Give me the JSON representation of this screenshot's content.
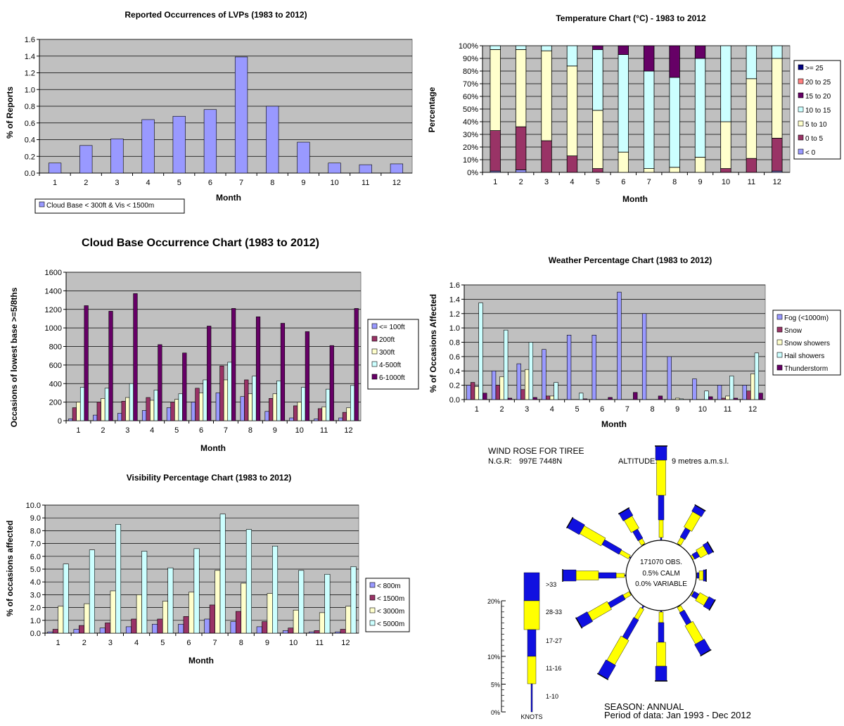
{
  "colors": {
    "plot_bg": "#c0c0c0",
    "grid": "#000000",
    "lavender": "#9999ff",
    "plum": "#993366",
    "cream": "#ffffcc",
    "lightcyan": "#ccffff",
    "darkpurple": "#660066",
    "salmon": "#ff8080",
    "navy": "#000080",
    "blue": "#1010e0",
    "yellow": "#ffff00"
  },
  "charts": {
    "lvp": {
      "type": "bar",
      "title": "Reported Occurrences of LVPs (1983 to 2012)",
      "xlabel": "Month",
      "ylabel": "% of Reports",
      "categories": [
        "1",
        "2",
        "3",
        "4",
        "5",
        "6",
        "7",
        "8",
        "9",
        "10",
        "11",
        "12"
      ],
      "ylim": [
        0,
        1.6
      ],
      "yticks": [
        "0.0",
        "0.2",
        "0.4",
        "0.6",
        "0.8",
        "1.0",
        "1.2",
        "1.4",
        "1.6"
      ],
      "series": [
        {
          "name": "Cloud Base < 300ft & Vis < 1500m",
          "color": "#9999ff",
          "values": [
            0.12,
            0.33,
            0.41,
            0.64,
            0.68,
            0.76,
            1.39,
            0.8,
            0.37,
            0.12,
            0.1,
            0.11
          ]
        }
      ]
    },
    "temperature": {
      "type": "bar",
      "stacked": true,
      "title": "Temperature Chart (°C) - 1983 to 2012",
      "xlabel": "Month",
      "ylabel": "Percentage",
      "categories": [
        "1",
        "2",
        "3",
        "4",
        "5",
        "6",
        "7",
        "8",
        "9",
        "10",
        "11",
        "12"
      ],
      "ylim": [
        0,
        100
      ],
      "yticks": [
        "0%",
        "10%",
        "20%",
        "30%",
        "40%",
        "50%",
        "60%",
        "70%",
        "80%",
        "90%",
        "100%"
      ],
      "series": [
        {
          "name": "< 0",
          "color": "#9999ff",
          "values": [
            1,
            2,
            0,
            0,
            0,
            0,
            0,
            0,
            0,
            0,
            0,
            1
          ]
        },
        {
          "name": "0 to 5",
          "color": "#993366",
          "values": [
            32,
            34,
            25,
            13,
            3,
            0,
            0,
            0,
            0,
            3,
            11,
            26
          ]
        },
        {
          "name": "5 to 10",
          "color": "#ffffcc",
          "values": [
            64,
            61,
            71,
            71,
            46,
            16,
            3,
            4,
            12,
            37,
            63,
            63
          ]
        },
        {
          "name": "10 to 15",
          "color": "#ccffff",
          "values": [
            3,
            3,
            4,
            16,
            48,
            77,
            77,
            71,
            78,
            60,
            26,
            10
          ]
        },
        {
          "name": "15 to 20",
          "color": "#660066",
          "values": [
            0,
            0,
            0,
            0,
            3,
            7,
            20,
            25,
            10,
            0,
            0,
            0
          ]
        },
        {
          "name": "20 to 25",
          "color": "#ff8080",
          "values": [
            0,
            0,
            0,
            0,
            0,
            0,
            0,
            0,
            0,
            0,
            0,
            0
          ]
        },
        {
          "name": ">= 25",
          "color": "#000080",
          "values": [
            0,
            0,
            0,
            0,
            0,
            0,
            0,
            0,
            0,
            0,
            0,
            0
          ]
        }
      ]
    },
    "cloud": {
      "type": "bar",
      "title": "Cloud Base Occurrence Chart (1983 to 2012)",
      "xlabel": "Month",
      "ylabel": "Occasions of lowest base >=5/8ths",
      "categories": [
        "1",
        "2",
        "3",
        "4",
        "5",
        "6",
        "7",
        "8",
        "9",
        "10",
        "11",
        "12"
      ],
      "ylim": [
        0,
        1600
      ],
      "yticks": [
        "0",
        "200",
        "400",
        "600",
        "800",
        "1000",
        "1200",
        "1400",
        "1600"
      ],
      "series": [
        {
          "name": "<= 100ft",
          "color": "#9999ff",
          "values": [
            20,
            60,
            80,
            110,
            140,
            200,
            300,
            260,
            100,
            30,
            20,
            30
          ]
        },
        {
          "name": "200ft",
          "color": "#993366",
          "values": [
            140,
            200,
            210,
            250,
            200,
            350,
            590,
            440,
            240,
            160,
            130,
            90
          ]
        },
        {
          "name": "300ft",
          "color": "#ffffcc",
          "values": [
            200,
            240,
            250,
            220,
            230,
            300,
            440,
            290,
            290,
            200,
            150,
            140
          ]
        },
        {
          "name": "4-500ft",
          "color": "#ccffff",
          "values": [
            360,
            350,
            400,
            330,
            290,
            440,
            630,
            480,
            430,
            360,
            340,
            380
          ]
        },
        {
          "name": "6-1000ft",
          "color": "#660066",
          "values": [
            1240,
            1180,
            1370,
            820,
            730,
            1020,
            1210,
            1120,
            1050,
            960,
            810,
            1210
          ]
        }
      ]
    },
    "weather": {
      "type": "bar",
      "title": "Weather Percentage Chart (1983 to 2012)",
      "xlabel": "Month",
      "ylabel": "% of Occasions Affected",
      "categories": [
        "1",
        "2",
        "3",
        "4",
        "5",
        "6",
        "7",
        "8",
        "9",
        "10",
        "11",
        "12"
      ],
      "ylim": [
        0,
        1.6
      ],
      "yticks": [
        "0.0",
        "0.2",
        "0.4",
        "0.6",
        "0.8",
        "1.0",
        "1.2",
        "1.4",
        "1.6"
      ],
      "series": [
        {
          "name": "Fog (<1000m)",
          "color": "#9999ff",
          "values": [
            0.2,
            0.4,
            0.5,
            0.7,
            0.9,
            0.9,
            1.5,
            1.2,
            0.6,
            0.29,
            0.2,
            0.2
          ]
        },
        {
          "name": "Snow",
          "color": "#993366",
          "values": [
            0.24,
            0.2,
            0.14,
            0.05,
            0.0,
            0.0,
            0.0,
            0.0,
            0.0,
            0.0,
            0.02,
            0.12
          ]
        },
        {
          "name": "Snow showers",
          "color": "#ffffcc",
          "values": [
            0.18,
            0.32,
            0.42,
            0.05,
            0.0,
            0.0,
            0.0,
            0.0,
            0.02,
            0.0,
            0.05,
            0.36
          ]
        },
        {
          "name": "Hail showers",
          "color": "#ccffff",
          "values": [
            1.35,
            0.97,
            0.8,
            0.24,
            0.09,
            0.0,
            0.0,
            0.0,
            0.01,
            0.12,
            0.33,
            0.65
          ]
        },
        {
          "name": "Thunderstorm",
          "color": "#660066",
          "values": [
            0.09,
            0.02,
            0.03,
            0.0,
            0.01,
            0.03,
            0.1,
            0.05,
            0.0,
            0.04,
            0.02,
            0.09
          ]
        }
      ]
    },
    "visibility": {
      "type": "bar",
      "title": "Visibility Percentage Chart (1983 to 2012)",
      "xlabel": "Month",
      "ylabel": "% of occasions affected",
      "categories": [
        "1",
        "2",
        "3",
        "4",
        "5",
        "6",
        "7",
        "8",
        "9",
        "10",
        "11",
        "12"
      ],
      "ylim": [
        0,
        10
      ],
      "yticks": [
        "0.0",
        "1.0",
        "2.0",
        "3.0",
        "4.0",
        "5.0",
        "6.0",
        "7.0",
        "8.0",
        "9.0",
        "10.0"
      ],
      "series": [
        {
          "name": "< 800m",
          "color": "#9999ff",
          "values": [
            0.1,
            0.3,
            0.4,
            0.5,
            0.7,
            0.7,
            1.1,
            0.9,
            0.5,
            0.2,
            0.1,
            0.1
          ]
        },
        {
          "name": "< 1500m",
          "color": "#993366",
          "values": [
            0.3,
            0.6,
            0.8,
            1.1,
            1.1,
            1.3,
            2.2,
            1.7,
            0.9,
            0.4,
            0.2,
            0.3
          ]
        },
        {
          "name": "< 3000m",
          "color": "#ffffcc",
          "values": [
            2.1,
            2.3,
            3.3,
            3.0,
            2.5,
            3.2,
            4.9,
            3.9,
            3.1,
            1.8,
            1.6,
            2.1
          ]
        },
        {
          "name": "< 5000m",
          "color": "#ccffff",
          "values": [
            5.4,
            6.5,
            8.5,
            6.4,
            5.1,
            6.6,
            9.3,
            8.1,
            6.8,
            4.9,
            4.6,
            5.2
          ]
        }
      ]
    }
  },
  "windrose": {
    "title": "WIND ROSE FOR TIREE",
    "ngr_label": "N.G.R:",
    "ngr": "997E 7448N",
    "altitude_label": "ALTITUDE:",
    "altitude": "9 metres a.m.s.l.",
    "obs": "171070 OBS.",
    "calm": "0.5% CALM",
    "variable": "0.0% VARIABLE",
    "season": "SEASON: ANNUAL",
    "period": "Period of data: Jan 1993 - Dec 2012",
    "scale_pct": [
      "20%",
      "10%",
      "5%",
      "0%"
    ],
    "speed_labels": [
      ">33",
      "28-33",
      "17-27",
      "11-16",
      "1-10"
    ],
    "knots": "KNOTS",
    "directions_deg": [
      0,
      30,
      60,
      90,
      120,
      150,
      180,
      210,
      240,
      270,
      300,
      330
    ],
    "segments_pct": [
      [
        2.0,
        5.0,
        3.5,
        2.5,
        0.4
      ],
      [
        1.0,
        2.5,
        1.5,
        1.0,
        0.1
      ],
      [
        0.8,
        1.2,
        0.8,
        0.3,
        0.0
      ],
      [
        0.4,
        0.6,
        0.3,
        0.1,
        0.0
      ],
      [
        1.0,
        1.4,
        0.8,
        0.2,
        0.0
      ],
      [
        1.8,
        3.0,
        2.0,
        0.8,
        0.1
      ],
      [
        2.1,
        3.4,
        2.8,
        1.5,
        0.2
      ],
      [
        2.3,
        4.0,
        3.2,
        1.7,
        0.4
      ],
      [
        1.8,
        3.2,
        2.4,
        1.0,
        0.1
      ],
      [
        1.9,
        3.2,
        2.5,
        1.2,
        0.2
      ],
      [
        2.0,
        3.5,
        2.8,
        1.5,
        0.2
      ],
      [
        1.2,
        2.0,
        1.5,
        0.8,
        0.1
      ]
    ]
  }
}
